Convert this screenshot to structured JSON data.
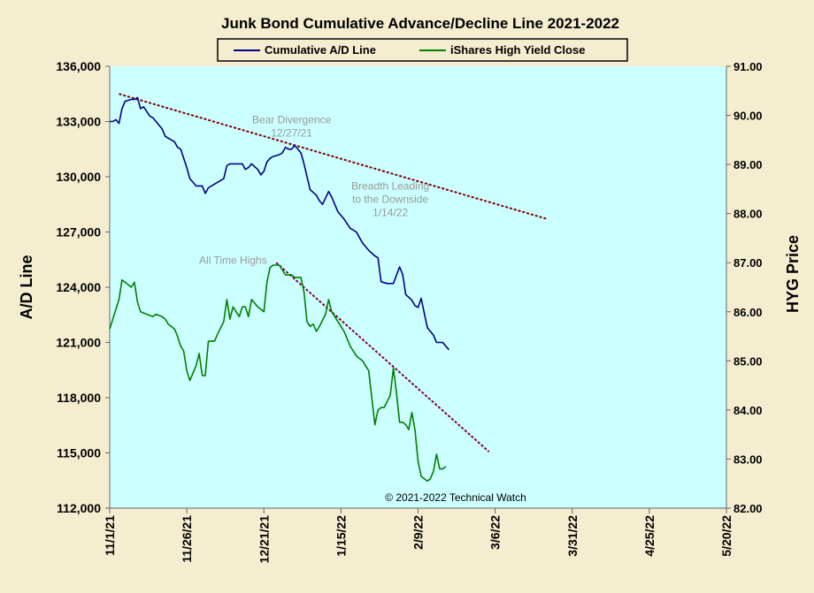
{
  "chart_data": {
    "type": "line",
    "title": "Junk Bond Cumulative Advance/Decline Line 2021-2022",
    "ylabel_left": "A/D Line",
    "ylabel_right": "HYG Price",
    "copyright": "© 2021-2022  Technical Watch",
    "x_axis": {
      "type": "date",
      "range": [
        "2021-11-01",
        "2022-05-20"
      ],
      "ticks": [
        "11/1/21",
        "11/26/21",
        "12/21/21",
        "1/15/22",
        "2/9/22",
        "3/6/22",
        "3/31/22",
        "4/25/22",
        "5/20/22"
      ]
    },
    "y_left": {
      "range": [
        112000,
        136000
      ],
      "ticks": [
        "112,000",
        "115,000",
        "118,000",
        "121,000",
        "124,000",
        "127,000",
        "130,000",
        "133,000",
        "136,000"
      ]
    },
    "y_right": {
      "range": [
        82.0,
        91.0
      ],
      "ticks": [
        "82.00",
        "83.00",
        "84.00",
        "85.00",
        "86.00",
        "87.00",
        "88.00",
        "89.00",
        "90.00",
        "91.00"
      ]
    },
    "grid": false,
    "legend_position": "top-center",
    "plot_background": "#ccffff",
    "series": [
      {
        "name": "Cumulative A/D Line",
        "axis": "left",
        "color": "#00008b",
        "points": [
          [
            "2021-11-01",
            133000
          ],
          [
            "2021-11-02",
            133000
          ],
          [
            "2021-11-03",
            133100
          ],
          [
            "2021-11-04",
            132900
          ],
          [
            "2021-11-05",
            133700
          ],
          [
            "2021-11-06",
            134100
          ],
          [
            "2021-11-08",
            134200
          ],
          [
            "2021-11-09",
            134200
          ],
          [
            "2021-11-10",
            134300
          ],
          [
            "2021-11-11",
            133700
          ],
          [
            "2021-11-12",
            133800
          ],
          [
            "2021-11-14",
            133300
          ],
          [
            "2021-11-15",
            133200
          ],
          [
            "2021-11-16",
            133000
          ],
          [
            "2021-11-17",
            132800
          ],
          [
            "2021-11-18",
            132600
          ],
          [
            "2021-11-19",
            132200
          ],
          [
            "2021-11-20",
            132100
          ],
          [
            "2021-11-22",
            131900
          ],
          [
            "2021-11-23",
            131600
          ],
          [
            "2021-11-24",
            131500
          ],
          [
            "2021-11-26",
            130500
          ],
          [
            "2021-11-27",
            129900
          ],
          [
            "2021-11-29",
            129500
          ],
          [
            "2021-11-30",
            129500
          ],
          [
            "2021-12-01",
            129500
          ],
          [
            "2021-12-02",
            129100
          ],
          [
            "2021-12-03",
            129400
          ],
          [
            "2021-12-05",
            129600
          ],
          [
            "2021-12-07",
            129800
          ],
          [
            "2021-12-08",
            129900
          ],
          [
            "2021-12-09",
            130600
          ],
          [
            "2021-12-10",
            130700
          ],
          [
            "2021-12-12",
            130700
          ],
          [
            "2021-12-14",
            130700
          ],
          [
            "2021-12-15",
            130400
          ],
          [
            "2021-12-16",
            130500
          ],
          [
            "2021-12-17",
            130700
          ],
          [
            "2021-12-19",
            130400
          ],
          [
            "2021-12-20",
            130100
          ],
          [
            "2021-12-21",
            130300
          ],
          [
            "2021-12-22",
            130800
          ],
          [
            "2021-12-23",
            131000
          ],
          [
            "2021-12-24",
            131100
          ],
          [
            "2021-12-26",
            131200
          ],
          [
            "2021-12-27",
            131300
          ],
          [
            "2021-12-28",
            131600
          ],
          [
            "2021-12-29",
            131500
          ],
          [
            "2021-12-30",
            131500
          ],
          [
            "2021-12-31",
            131700
          ],
          [
            "2022-01-02",
            131300
          ],
          [
            "2022-01-03",
            130700
          ],
          [
            "2022-01-04",
            130000
          ],
          [
            "2022-01-05",
            129300
          ],
          [
            "2022-01-07",
            129000
          ],
          [
            "2022-01-08",
            128700
          ],
          [
            "2022-01-09",
            128500
          ],
          [
            "2022-01-11",
            129200
          ],
          [
            "2022-01-12",
            128900
          ],
          [
            "2022-01-13",
            128500
          ],
          [
            "2022-01-14",
            128100
          ],
          [
            "2022-01-16",
            127700
          ],
          [
            "2022-01-18",
            127200
          ],
          [
            "2022-01-20",
            127000
          ],
          [
            "2022-01-21",
            126700
          ],
          [
            "2022-01-22",
            126400
          ],
          [
            "2022-01-24",
            126000
          ],
          [
            "2022-01-26",
            125700
          ],
          [
            "2022-01-27",
            125600
          ],
          [
            "2022-01-28",
            124300
          ],
          [
            "2022-01-30",
            124200
          ],
          [
            "2022-02-01",
            124200
          ],
          [
            "2022-02-03",
            125100
          ],
          [
            "2022-02-04",
            124700
          ],
          [
            "2022-02-05",
            123600
          ],
          [
            "2022-02-07",
            123300
          ],
          [
            "2022-02-08",
            123000
          ],
          [
            "2022-02-09",
            122900
          ],
          [
            "2022-02-10",
            123400
          ],
          [
            "2022-02-11",
            122600
          ],
          [
            "2022-02-12",
            121800
          ],
          [
            "2022-02-14",
            121400
          ],
          [
            "2022-02-15",
            121000
          ],
          [
            "2022-02-17",
            121000
          ],
          [
            "2022-02-18",
            120800
          ],
          [
            "2022-02-19",
            120600
          ]
        ]
      },
      {
        "name": "iShares High Yield Close",
        "axis": "right",
        "color": "#008000",
        "points": [
          [
            "2021-11-01",
            85.65
          ],
          [
            "2021-11-02",
            85.85
          ],
          [
            "2021-11-03",
            86.05
          ],
          [
            "2021-11-04",
            86.25
          ],
          [
            "2021-11-05",
            86.65
          ],
          [
            "2021-11-06",
            86.6
          ],
          [
            "2021-11-08",
            86.5
          ],
          [
            "2021-11-09",
            86.6
          ],
          [
            "2021-11-10",
            86.2
          ],
          [
            "2021-11-11",
            86.0
          ],
          [
            "2021-11-13",
            85.95
          ],
          [
            "2021-11-15",
            85.9
          ],
          [
            "2021-11-16",
            85.95
          ],
          [
            "2021-11-18",
            85.9
          ],
          [
            "2021-11-19",
            85.85
          ],
          [
            "2021-11-20",
            85.75
          ],
          [
            "2021-11-22",
            85.65
          ],
          [
            "2021-11-23",
            85.5
          ],
          [
            "2021-11-24",
            85.3
          ],
          [
            "2021-11-25",
            85.2
          ],
          [
            "2021-11-26",
            84.8
          ],
          [
            "2021-11-27",
            84.6
          ],
          [
            "2021-11-29",
            84.9
          ],
          [
            "2021-11-30",
            85.15
          ],
          [
            "2021-12-01",
            84.7
          ],
          [
            "2021-12-02",
            84.7
          ],
          [
            "2021-12-03",
            85.4
          ],
          [
            "2021-12-05",
            85.4
          ],
          [
            "2021-12-06",
            85.55
          ],
          [
            "2021-12-08",
            85.8
          ],
          [
            "2021-12-09",
            86.25
          ],
          [
            "2021-12-10",
            85.85
          ],
          [
            "2021-12-11",
            86.1
          ],
          [
            "2021-12-13",
            85.9
          ],
          [
            "2021-12-14",
            86.1
          ],
          [
            "2021-12-15",
            86.1
          ],
          [
            "2021-12-16",
            85.9
          ],
          [
            "2021-12-17",
            86.25
          ],
          [
            "2021-12-19",
            86.1
          ],
          [
            "2021-12-21",
            86.0
          ],
          [
            "2021-12-22",
            86.6
          ],
          [
            "2021-12-23",
            86.9
          ],
          [
            "2021-12-24",
            86.95
          ],
          [
            "2021-12-26",
            86.95
          ],
          [
            "2021-12-27",
            86.85
          ],
          [
            "2021-12-28",
            86.75
          ],
          [
            "2021-12-29",
            86.75
          ],
          [
            "2021-12-30",
            86.75
          ],
          [
            "2021-12-31",
            86.7
          ],
          [
            "2022-01-02",
            86.7
          ],
          [
            "2022-01-03",
            86.4
          ],
          [
            "2022-01-04",
            85.8
          ],
          [
            "2022-01-05",
            85.7
          ],
          [
            "2022-01-06",
            85.75
          ],
          [
            "2022-01-07",
            85.6
          ],
          [
            "2022-01-08",
            85.7
          ],
          [
            "2022-01-10",
            85.95
          ],
          [
            "2022-01-11",
            86.25
          ],
          [
            "2022-01-12",
            86.0
          ],
          [
            "2022-01-14",
            85.8
          ],
          [
            "2022-01-16",
            85.6
          ],
          [
            "2022-01-18",
            85.3
          ],
          [
            "2022-01-20",
            85.1
          ],
          [
            "2022-01-21",
            85.05
          ],
          [
            "2022-01-22",
            85.0
          ],
          [
            "2022-01-24",
            84.8
          ],
          [
            "2022-01-25",
            84.25
          ],
          [
            "2022-01-26",
            83.7
          ],
          [
            "2022-01-27",
            84.0
          ],
          [
            "2022-01-28",
            84.05
          ],
          [
            "2022-01-29",
            84.05
          ],
          [
            "2022-01-31",
            84.3
          ],
          [
            "2022-02-01",
            84.85
          ],
          [
            "2022-02-02",
            84.35
          ],
          [
            "2022-02-03",
            83.75
          ],
          [
            "2022-02-04",
            83.75
          ],
          [
            "2022-02-05",
            83.7
          ],
          [
            "2022-02-06",
            83.6
          ],
          [
            "2022-02-07",
            83.95
          ],
          [
            "2022-02-08",
            83.6
          ],
          [
            "2022-02-09",
            82.95
          ],
          [
            "2022-02-10",
            82.65
          ],
          [
            "2022-02-11",
            82.6
          ],
          [
            "2022-02-12",
            82.55
          ],
          [
            "2022-02-13",
            82.6
          ],
          [
            "2022-02-14",
            82.75
          ],
          [
            "2022-02-15",
            83.1
          ],
          [
            "2022-02-16",
            82.8
          ],
          [
            "2022-02-17",
            82.8
          ],
          [
            "2022-02-18",
            82.85
          ]
        ]
      }
    ],
    "trendlines": [
      {
        "axis": "left",
        "color": "#800000",
        "from": [
          "2021-11-04",
          134500
        ],
        "to": [
          "2022-03-23",
          127700
        ]
      },
      {
        "axis": "right",
        "color": "#800040",
        "from": [
          "2021-12-25",
          87.0
        ],
        "to": [
          "2022-03-04",
          83.15
        ]
      }
    ],
    "annotations": [
      {
        "lines": [
          "Bear Divergence",
          "12/27/21"
        ],
        "x": "2021-12-30",
        "y_axis": "left",
        "y": 132900
      },
      {
        "lines": [
          "Breadth Leading",
          "to the Downside",
          "1/14/22"
        ],
        "x": "2022-01-31",
        "y_axis": "left",
        "y": 129300
      },
      {
        "lines": [
          "All Time Highs"
        ],
        "x": "2021-12-11",
        "y_axis": "right",
        "y": 86.98
      }
    ]
  }
}
